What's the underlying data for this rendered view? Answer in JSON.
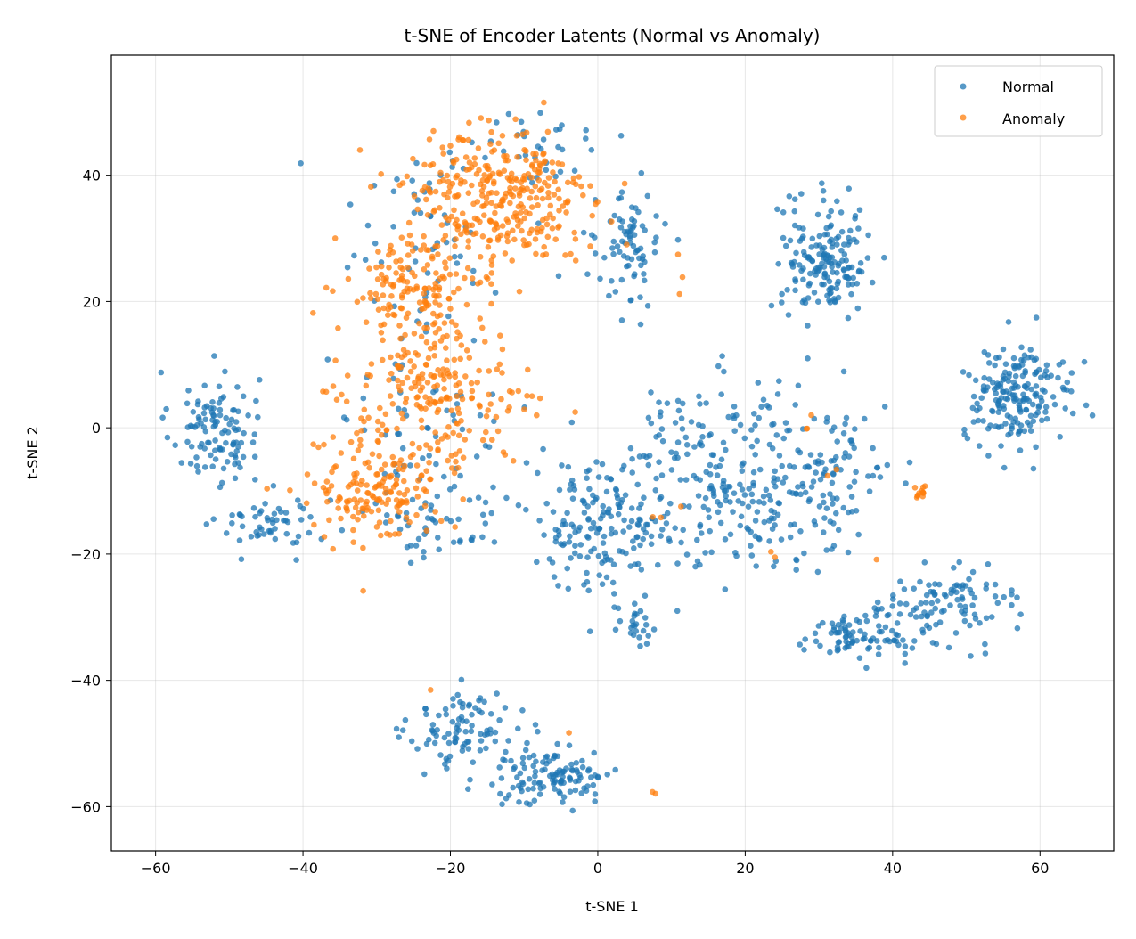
{
  "chart_data": {
    "type": "scatter",
    "title": "t-SNE of Encoder Latents (Normal vs Anomaly)",
    "xlabel": "t-SNE 1",
    "ylabel": "t-SNE 2",
    "xlim": [
      -66,
      70
    ],
    "ylim": [
      -67,
      59
    ],
    "xticks": [
      -60,
      -40,
      -20,
      0,
      20,
      40,
      60
    ],
    "yticks": [
      -60,
      -40,
      -20,
      0,
      20,
      40
    ],
    "xtick_labels": [
      "−60",
      "−40",
      "−20",
      "0",
      "20",
      "40",
      "60"
    ],
    "ytick_labels": [
      "−60",
      "−40",
      "−20",
      "0",
      "20",
      "40"
    ],
    "grid": true,
    "legend_position": "top-right",
    "series": [
      {
        "name": "Normal",
        "color": "#1f77b4",
        "clusters": [
          {
            "center": [
              -52,
              0
            ],
            "spread": [
              4,
              6
            ],
            "count": 110
          },
          {
            "center": [
              -44,
              -15
            ],
            "spread": [
              5,
              3
            ],
            "count": 55
          },
          {
            "center": [
              -22,
              -15
            ],
            "spread": [
              6,
              4
            ],
            "count": 45
          },
          {
            "center": [
              -18,
              -48
            ],
            "spread": [
              5,
              4
            ],
            "count": 90
          },
          {
            "center": [
              -6,
              -55
            ],
            "spread": [
              6,
              3.5
            ],
            "count": 120
          },
          {
            "center": [
              5,
              -32
            ],
            "spread": [
              2,
              2.5
            ],
            "count": 25
          },
          {
            "center": [
              0,
              -15
            ],
            "spread": [
              7,
              7
            ],
            "count": 160
          },
          {
            "center": [
              18,
              -8
            ],
            "spread": [
              10,
              10
            ],
            "count": 260
          },
          {
            "center": [
              32,
              -8
            ],
            "spread": [
              5,
              8
            ],
            "count": 80
          },
          {
            "center": [
              35,
              -33
            ],
            "spread": [
              5,
              2.5
            ],
            "count": 90
          },
          {
            "center": [
              48,
              -28
            ],
            "spread": [
              6,
              4
            ],
            "count": 100
          },
          {
            "center": [
              31,
              27
            ],
            "spread": [
              4,
              6
            ],
            "count": 170
          },
          {
            "center": [
              57,
              5
            ],
            "spread": [
              5,
              5
            ],
            "count": 190
          },
          {
            "center": [
              4,
              28
            ],
            "spread": [
              3,
              6
            ],
            "count": 80
          },
          {
            "center": [
              -8,
              45
            ],
            "spread": [
              6,
              4
            ],
            "count": 35
          },
          {
            "center": [
              -24,
              30
            ],
            "spread": [
              8,
              10
            ],
            "count": 55
          },
          {
            "center": [
              -24,
              0
            ],
            "spread": [
              8,
              10
            ],
            "count": 60
          }
        ]
      },
      {
        "name": "Anomaly",
        "color": "#ff7f0e",
        "clusters": [
          {
            "center": [
              -14,
              36
            ],
            "spread": [
              9,
              8
            ],
            "count": 330
          },
          {
            "center": [
              -25,
              22
            ],
            "spread": [
              6,
              5
            ],
            "count": 130
          },
          {
            "center": [
              -22,
              5
            ],
            "spread": [
              8,
              8
            ],
            "count": 230
          },
          {
            "center": [
              -30,
              -10
            ],
            "spread": [
              6,
              5
            ],
            "count": 150
          },
          {
            "center": [
              44,
              -10
            ],
            "spread": [
              0.4,
              1.2
            ],
            "count": 12
          },
          {
            "center": [
              11,
              25
            ],
            "spread": [
              0.5,
              3
            ],
            "count": 3
          },
          {
            "center": [
              8,
              -14
            ],
            "spread": [
              2,
              1
            ],
            "count": 3
          },
          {
            "center": [
              -32,
              -26
            ],
            "spread": [
              0.5,
              0.5
            ],
            "count": 1
          },
          {
            "center": [
              -23,
              -42
            ],
            "spread": [
              0.5,
              0.5
            ],
            "count": 1
          },
          {
            "center": [
              -4,
              -48
            ],
            "spread": [
              0.5,
              0.5
            ],
            "count": 1
          },
          {
            "center": [
              7.5,
              -58
            ],
            "spread": [
              0.5,
              0.5
            ],
            "count": 2
          },
          {
            "center": [
              38,
              -21
            ],
            "spread": [
              0.5,
              0.5
            ],
            "count": 1
          },
          {
            "center": [
              25,
              -20
            ],
            "spread": [
              2,
              2
            ],
            "count": 2
          },
          {
            "center": [
              29,
              1
            ],
            "spread": [
              1,
              2
            ],
            "count": 3
          },
          {
            "center": [
              32,
              -7
            ],
            "spread": [
              0.5,
              0.5
            ],
            "count": 2
          }
        ]
      }
    ]
  }
}
